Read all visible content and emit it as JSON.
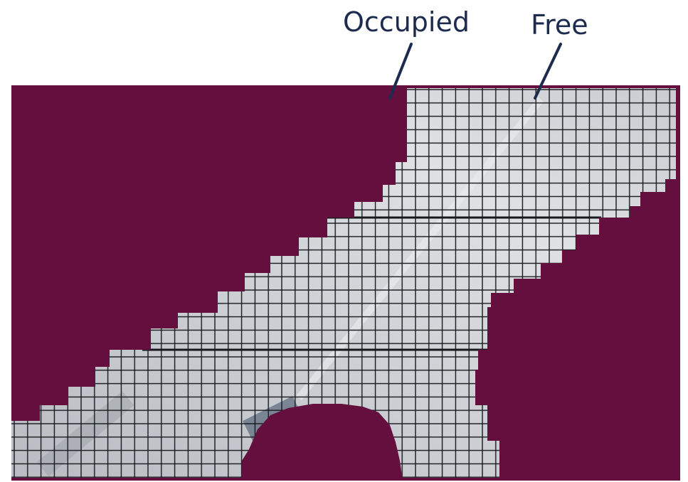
{
  "labels": {
    "occupied": "Occupied",
    "free": "Free"
  },
  "colors": {
    "occupied": "#640f3d",
    "free_base": "#c9ccd0",
    "free_light": "#dcdee1",
    "free_dark": "#a5a9b0",
    "grid_line": "#16181c",
    "pointer_line": "#1d2b4f",
    "label_text": "#1d2b4f"
  },
  "legend": {
    "occupied_icon": "occupied-region-color",
    "free_icon": "free-region-grid"
  }
}
